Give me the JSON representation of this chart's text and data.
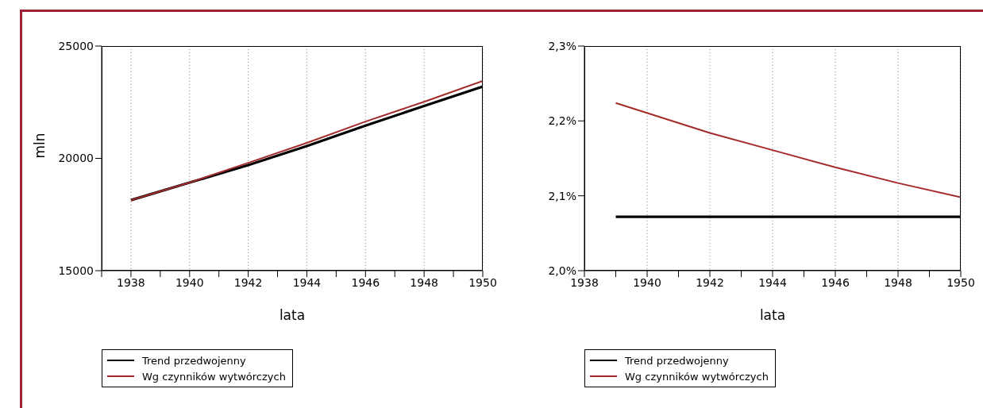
{
  "chart_data": [
    {
      "type": "line",
      "xlabel": "lata",
      "ylabel": "mln",
      "x": [
        1938,
        1940,
        1942,
        1944,
        1946,
        1948,
        1950
      ],
      "series": [
        {
          "name": "Trend przedwojenny",
          "color": "#000000",
          "values": [
            18140,
            18920,
            19700,
            20550,
            21460,
            22330,
            23200
          ]
        },
        {
          "name": "Wg czynników wytwórczych",
          "color": "#a52a2a",
          "values": [
            18140,
            18920,
            19800,
            20690,
            21640,
            22520,
            23450
          ]
        }
      ],
      "xlim": [
        1937,
        1950
      ],
      "xticks": [
        {
          "value": 1937,
          "label": null
        },
        1938,
        {
          "value": 1939,
          "label": null
        },
        1940,
        {
          "value": 1941,
          "label": null
        },
        1942,
        {
          "value": 1943,
          "label": null
        },
        1944,
        {
          "value": 1945,
          "label": null
        },
        1946,
        {
          "value": 1947,
          "label": null
        },
        1948,
        {
          "value": 1949,
          "label": null
        },
        1950
      ],
      "ylim": [
        15000,
        25000
      ],
      "yticks": [
        15000,
        20000,
        25000
      ],
      "grid": "x",
      "legend": "bottom",
      "line_style": "solid",
      "marker": "none"
    },
    {
      "type": "line",
      "xlabel": "lata",
      "x": [
        1939,
        1942,
        1944,
        1946,
        1948,
        1950
      ],
      "series": [
        {
          "name": "Trend przedwojenny",
          "color": "#000000",
          "values": [
            2.072,
            2.072,
            2.072,
            2.072,
            2.072,
            2.072
          ]
        },
        {
          "name": "Wg czynników wytwórczych",
          "color": "#a52a2a",
          "values": [
            2.224,
            2.184,
            2.161,
            2.138,
            2.117,
            2.098
          ]
        }
      ],
      "xlim": [
        1938,
        1950
      ],
      "xticks": [
        1938,
        {
          "value": 1939,
          "label": null
        },
        1940,
        {
          "value": 1941,
          "label": null
        },
        1942,
        {
          "value": 1943,
          "label": null
        },
        1944,
        {
          "value": 1945,
          "label": null
        },
        1946,
        {
          "value": 1947,
          "label": null
        },
        1948,
        {
          "value": 1949,
          "label": null
        },
        1950
      ],
      "ylim": [
        2.0,
        2.3
      ],
      "yticks": [
        {
          "value": 2.0,
          "label": "2,0%"
        },
        {
          "value": 2.1,
          "label": "2,1%"
        },
        {
          "value": 2.2,
          "label": "2,2%"
        },
        {
          "value": 2.3,
          "label": "2,3%"
        }
      ],
      "grid": "x",
      "legend": "bottom",
      "line_style": "solid",
      "marker": "none"
    }
  ]
}
